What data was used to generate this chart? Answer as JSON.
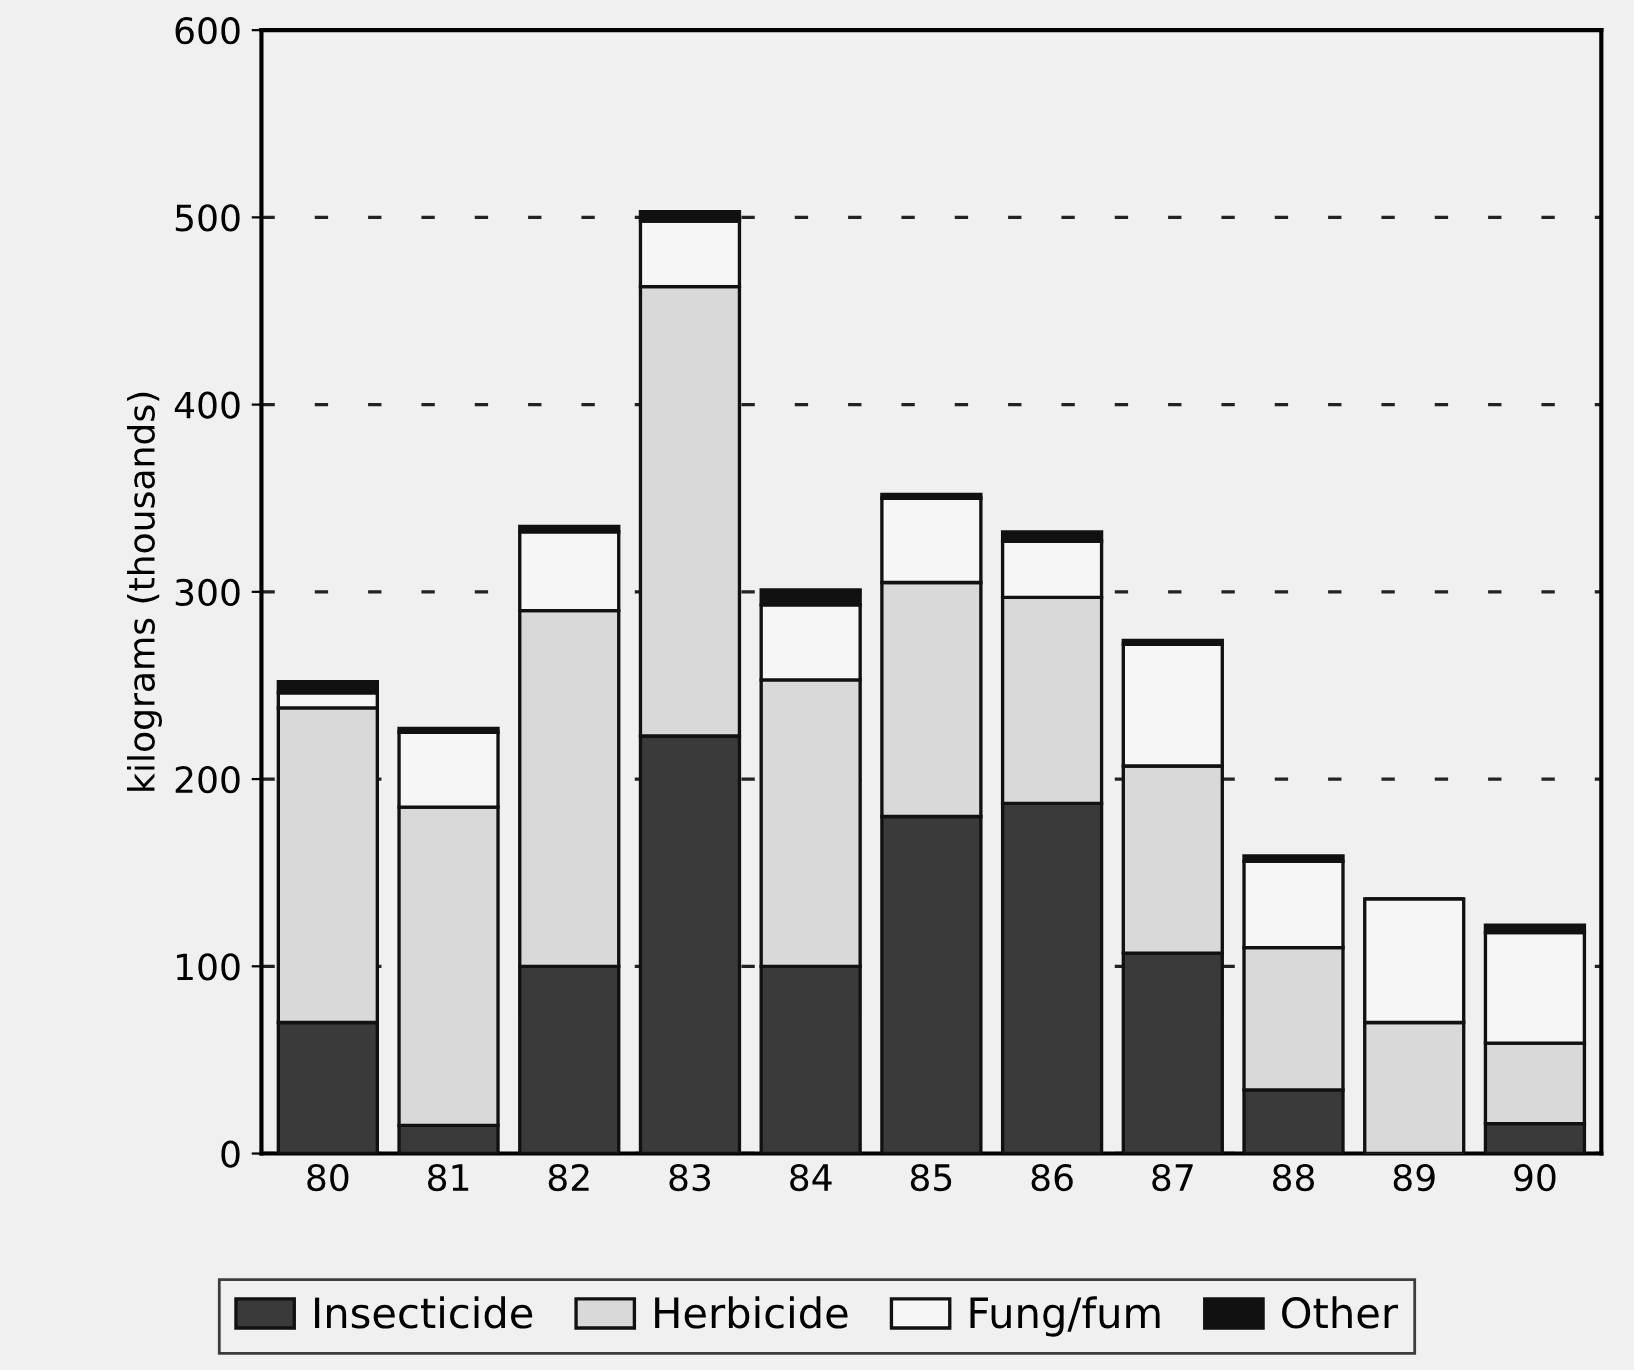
{
  "chart_data": {
    "type": "bar",
    "stacked": true,
    "ylabel": "kilograms (thousands)",
    "categories": [
      "80",
      "81",
      "82",
      "83",
      "84",
      "85",
      "86",
      "87",
      "88",
      "89",
      "90"
    ],
    "series": [
      {
        "name": "Insecticide",
        "color": "#3a3a3a",
        "values": [
          70,
          15,
          100,
          223,
          100,
          180,
          187,
          107,
          34,
          0,
          16
        ]
      },
      {
        "name": "Herbicide",
        "color": "#d9d9d9",
        "values": [
          168,
          170,
          190,
          240,
          153,
          125,
          110,
          100,
          76,
          70,
          43
        ]
      },
      {
        "name": "Fung/fum",
        "color": "#f6f6f6",
        "values": [
          8,
          40,
          42,
          35,
          40,
          45,
          30,
          65,
          46,
          66,
          59
        ]
      },
      {
        "name": "Other",
        "color": "#111111",
        "values": [
          6,
          2,
          3,
          5,
          8,
          2,
          5,
          2,
          3,
          0,
          4
        ]
      }
    ],
    "ylim": [
      0,
      600
    ],
    "yticks": [
      0,
      100,
      200,
      300,
      400,
      500,
      600
    ],
    "grid": "y",
    "legend": "bottom"
  }
}
